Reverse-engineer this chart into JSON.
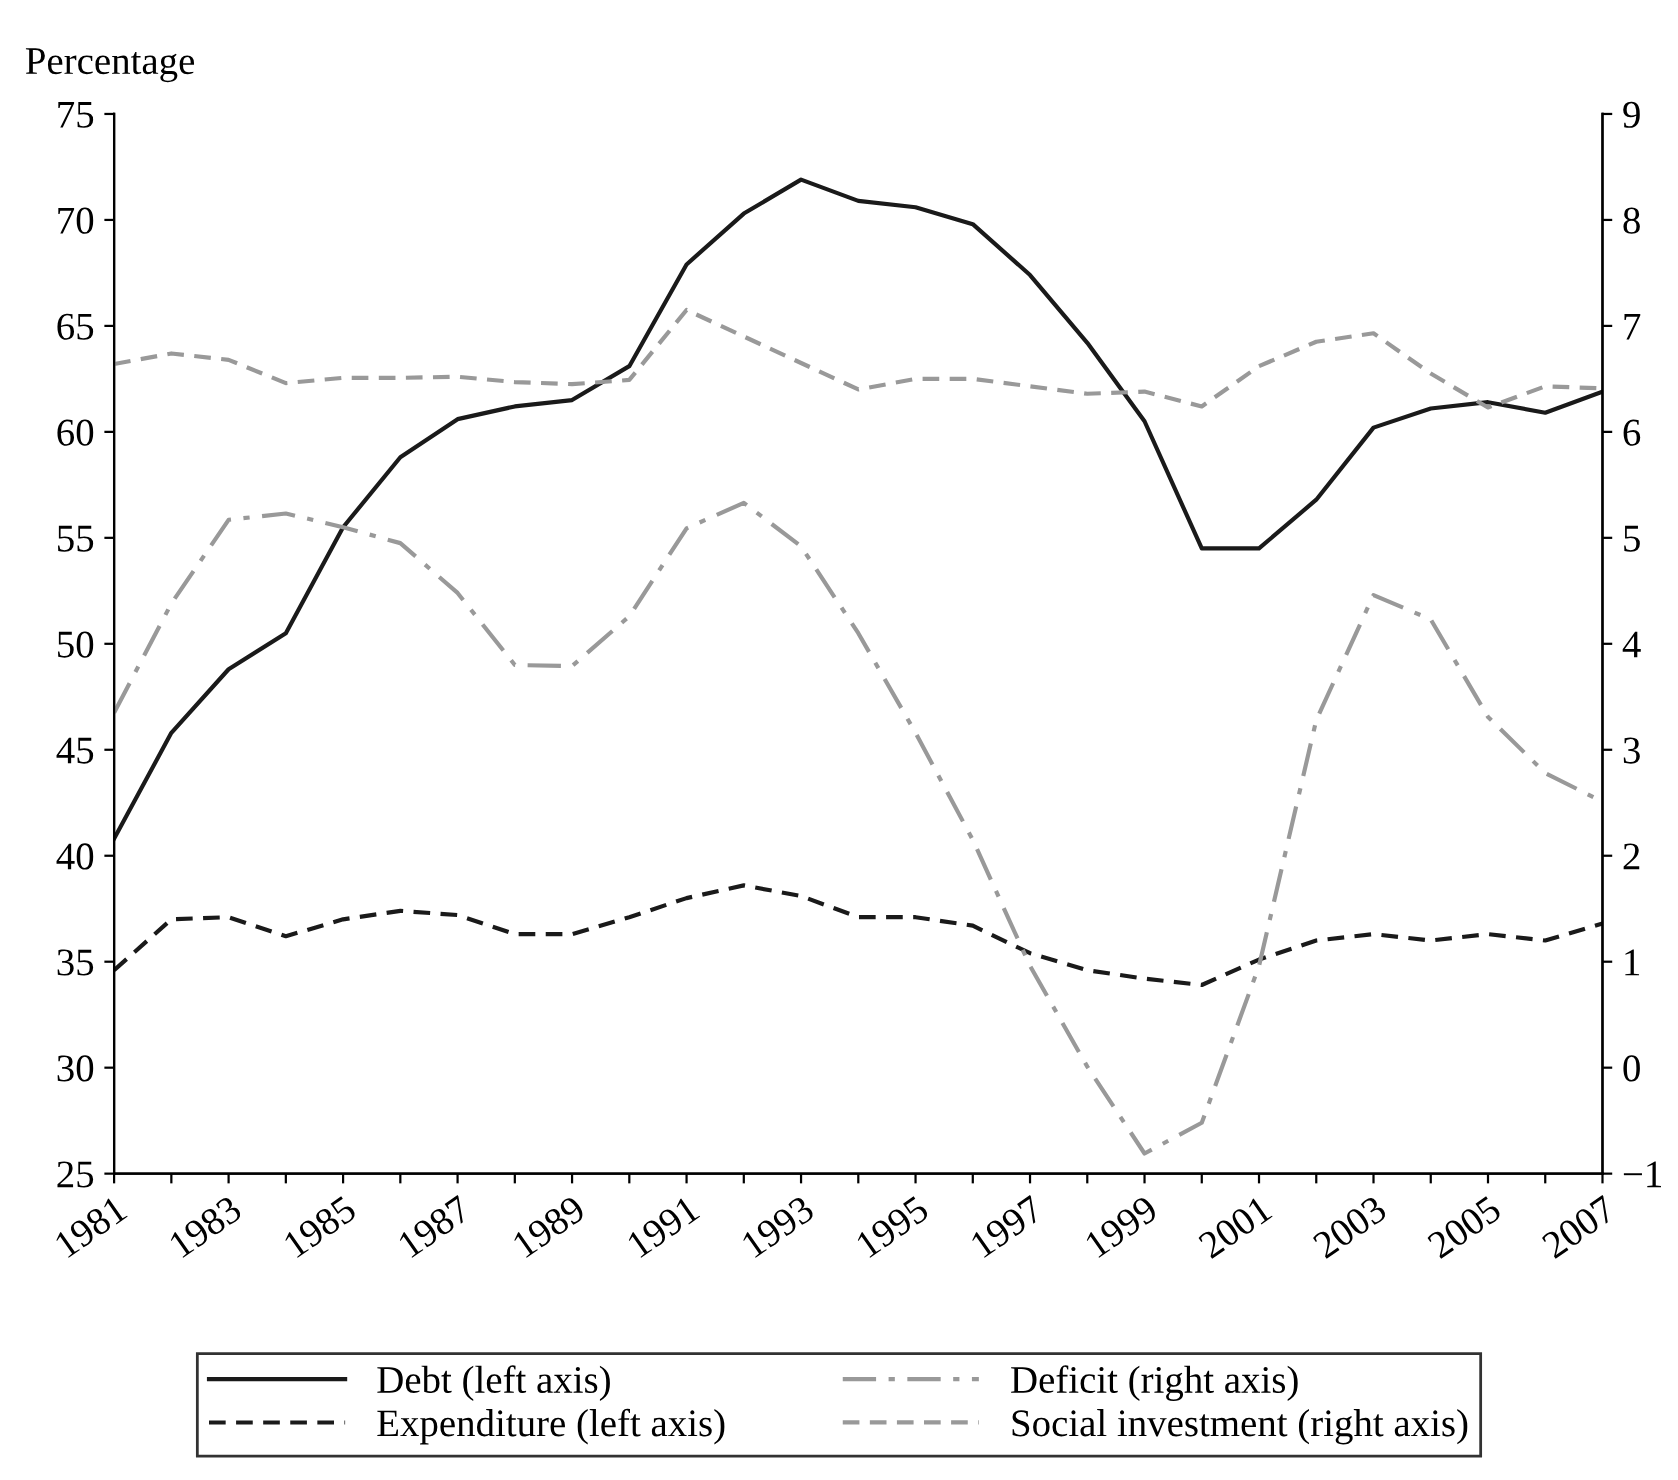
{
  "chart_data": {
    "type": "line",
    "ylabel": "Percentage",
    "x": [
      1981,
      1982,
      1983,
      1984,
      1985,
      1986,
      1987,
      1988,
      1989,
      1990,
      1991,
      1992,
      1993,
      1994,
      1995,
      1996,
      1997,
      1998,
      1999,
      2000,
      2001,
      2002,
      2003,
      2004,
      2005,
      2006,
      2007
    ],
    "xlim": [
      1981,
      2007
    ],
    "xticks": [
      1981,
      {
        "value": 1982,
        "label": null
      },
      1983,
      {
        "value": 1984,
        "label": null
      },
      1985,
      {
        "value": 1986,
        "label": null
      },
      1987,
      {
        "value": 1988,
        "label": null
      },
      1989,
      {
        "value": 1990,
        "label": null
      },
      1991,
      {
        "value": 1992,
        "label": null
      },
      1993,
      {
        "value": 1994,
        "label": null
      },
      1995,
      {
        "value": 1996,
        "label": null
      },
      1997,
      {
        "value": 1998,
        "label": null
      },
      1999,
      {
        "value": 2000,
        "label": null
      },
      2001,
      {
        "value": 2002,
        "label": null
      },
      2003,
      {
        "value": 2004,
        "label": null
      },
      2005,
      {
        "value": 2006,
        "label": null
      },
      2007
    ],
    "ylim": [
      25,
      75
    ],
    "yticks": [
      25,
      30,
      35,
      40,
      45,
      50,
      55,
      60,
      65,
      70,
      75
    ],
    "y2lim": [
      -1,
      9
    ],
    "y2ticks": [
      {
        "value": -1,
        "label": "−1"
      },
      0,
      1,
      2,
      3,
      4,
      5,
      6,
      7,
      8,
      9
    ],
    "grid": false,
    "legend": "bottom",
    "marker": "none",
    "series": [
      {
        "name": "Debt (left axis)",
        "color": "#1a1a1a",
        "line_style": "solid",
        "values": [
          40.8,
          45.8,
          48.8,
          50.5,
          55.5,
          58.8,
          60.6,
          61.2,
          61.5,
          63.1,
          67.9,
          70.3,
          71.9,
          70.9,
          70.6,
          69.8,
          67.4,
          64.2,
          60.5,
          54.5,
          54.5,
          56.8,
          60.2,
          61.1,
          61.4,
          60.9,
          61.9
        ]
      },
      {
        "name": "Expenditure (left axis)",
        "color": "#1a1a1a",
        "line_style": "dashed",
        "values": [
          34.6,
          37.0,
          37.1,
          36.2,
          37.0,
          37.4,
          37.2,
          36.3,
          36.3,
          37.1,
          38.0,
          38.6,
          38.1,
          37.1,
          37.1,
          36.7,
          35.4,
          34.6,
          34.2,
          33.9,
          35.1,
          36.0,
          36.3,
          36.0,
          36.3,
          36.0,
          36.8
        ]
      },
      {
        "name": "Deficit (right axis)",
        "color": "#999999",
        "line_style": "dashdot",
        "axis": "y2",
        "values": [
          3.35,
          4.38,
          5.17,
          5.23,
          5.1,
          4.95,
          4.48,
          3.8,
          3.79,
          4.26,
          5.09,
          5.33,
          4.92,
          4.1,
          3.16,
          2.15,
          0.96,
          0.01,
          -0.81,
          -0.52,
          0.96,
          3.28,
          4.46,
          4.23,
          3.31,
          2.78,
          2.51
        ]
      },
      {
        "name": "Social investment (right axis)",
        "color": "#999999",
        "line_style": "dashed",
        "axis": "y2",
        "values": [
          6.64,
          6.74,
          6.68,
          6.46,
          6.51,
          6.51,
          6.52,
          6.47,
          6.45,
          6.49,
          7.15,
          6.9,
          6.65,
          6.4,
          6.5,
          6.5,
          6.43,
          6.36,
          6.38,
          6.24,
          6.62,
          6.85,
          6.93,
          6.55,
          6.23,
          6.43,
          6.41
        ]
      }
    ]
  }
}
